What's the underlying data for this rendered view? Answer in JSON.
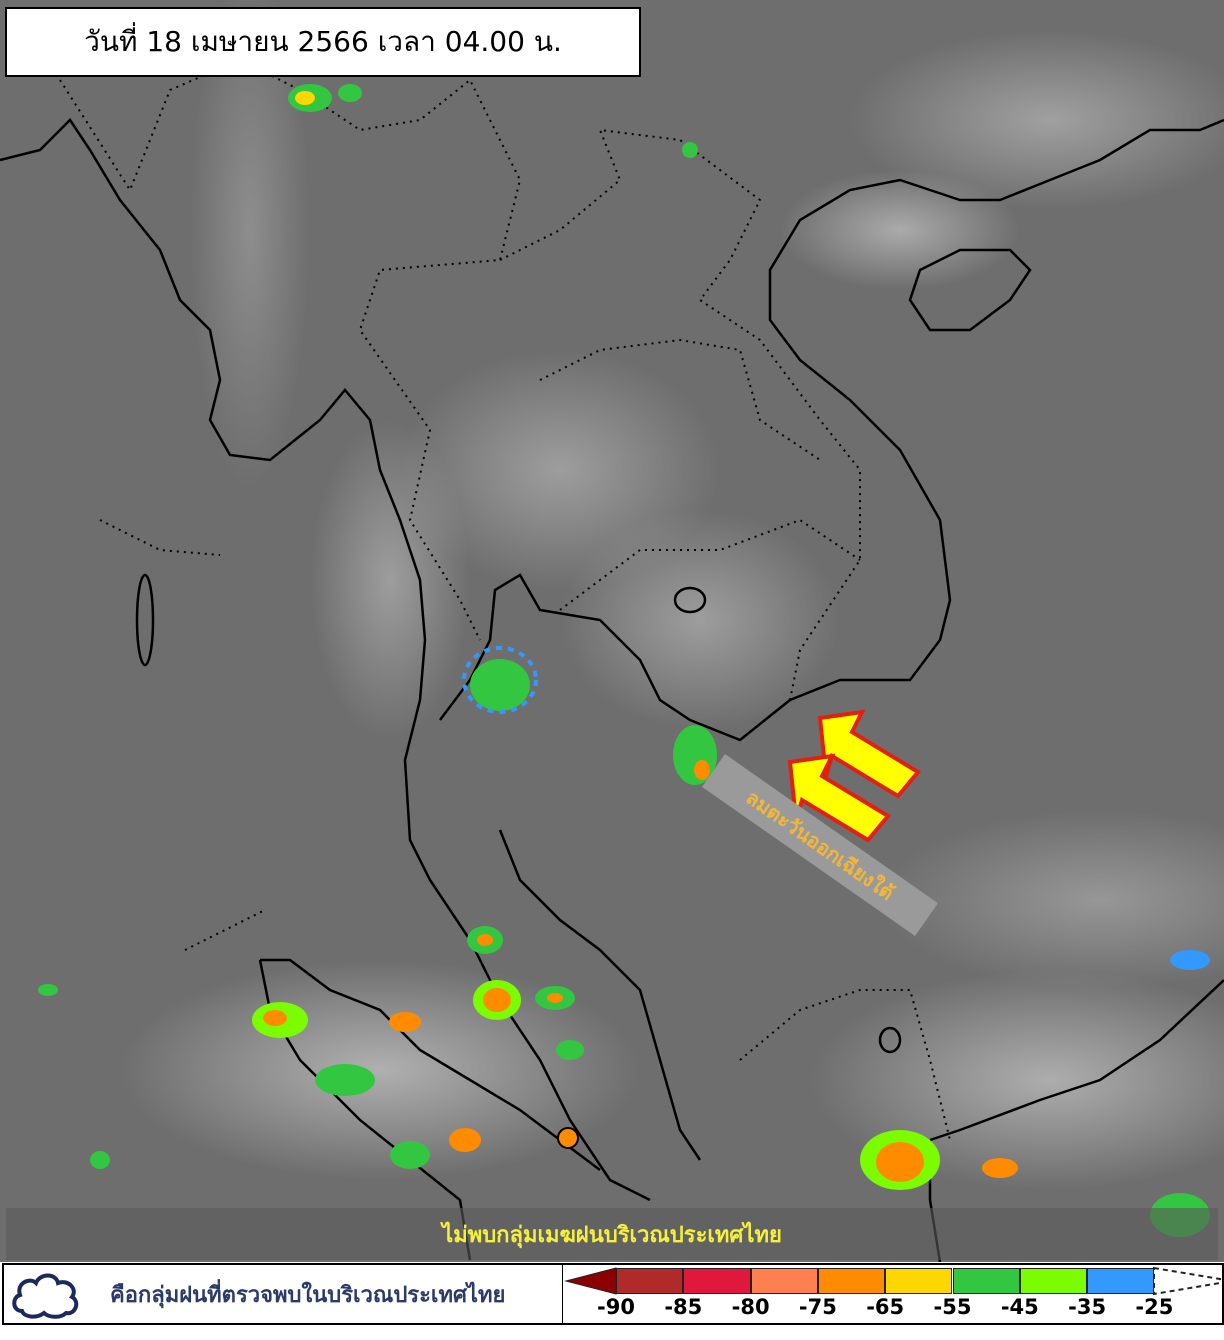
{
  "title": "วันที่ 18 เมษายน 2566 เวลา 04.00 น.",
  "wind_annotation": "ลมตะวันออกเฉียงใต้",
  "status_banner": "ไม่พบกลุ่มเมฆฝนบริเวณประเทศไทย",
  "legend": {
    "cloud_icon": "cloud-outline-icon",
    "description": "คือกลุ่มฝนที่ตรวจพบในบริเวณประเทศไทย",
    "colorbar": {
      "colors": [
        "#8b0000",
        "#b02a2a",
        "#e0183c",
        "#ff7f50",
        "#ff8c00",
        "#ffd700",
        "#33c640",
        "#7cfc00",
        "#3399ff"
      ],
      "ticks": [
        "-90",
        "-85",
        "-80",
        "-75",
        "-65",
        "-55",
        "-45",
        "-35",
        "-25"
      ]
    }
  },
  "arrow_colors": {
    "fill": "#ffff00",
    "outline": "#e02010"
  }
}
